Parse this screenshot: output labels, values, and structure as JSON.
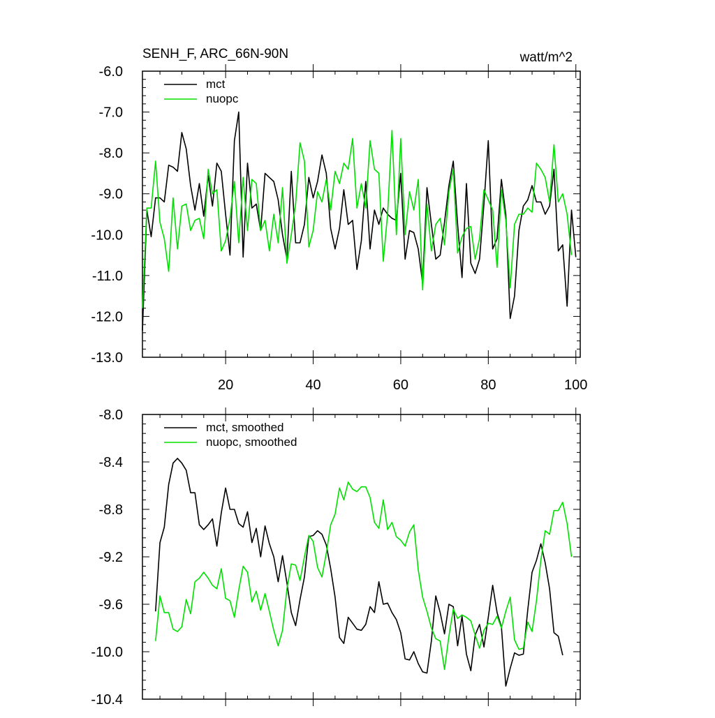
{
  "header": {
    "title": "SENH_F, ARC_66N-90N",
    "units": "watt/m^2"
  },
  "colors": {
    "mct": "#000000",
    "nuopc": "#00e000"
  },
  "chart_data": [
    {
      "type": "line",
      "title": "SENH_F, ARC_66N-90N",
      "units": "watt/m^2",
      "xlabel": "",
      "ylabel": "",
      "xlim": [
        1,
        101
      ],
      "ylim": [
        -13.0,
        -6.0
      ],
      "xticks": [
        20,
        40,
        60,
        80,
        100
      ],
      "yticks": [
        -6.0,
        -7.0,
        -8.0,
        -9.0,
        -10.0,
        -11.0,
        -12.0,
        -13.0
      ],
      "yticklabels": [
        "-6.0",
        "-7.0",
        "-8.0",
        "-9.0",
        "-10.0",
        "-11.0",
        "-12.0",
        "-13.0"
      ],
      "legend": "top-left",
      "x_start": 1,
      "series": [
        {
          "name": "mct",
          "color": "#000000",
          "values": [
            -12.35,
            -9.4,
            -10.05,
            -9.1,
            -9.1,
            -9.2,
            -8.3,
            -8.35,
            -8.45,
            -7.5,
            -7.9,
            -8.8,
            -9.4,
            -8.75,
            -9.55,
            -8.55,
            -9.3,
            -8.25,
            -8.45,
            -9.5,
            -10.5,
            -7.7,
            -7.0,
            -10.55,
            -8.25,
            -9.35,
            -9.25,
            -9.9,
            -8.5,
            -8.6,
            -8.7,
            -9.15,
            -10.0,
            -10.6,
            -8.45,
            -10.2,
            -10.2,
            -9.75,
            -8.6,
            -9.1,
            -8.7,
            -8.05,
            -8.5,
            -9.85,
            -10.35,
            -9.85,
            -8.9,
            -9.75,
            -9.65,
            -10.85,
            -10.15,
            -8.7,
            -10.35,
            -9.4,
            -9.75,
            -9.35,
            -9.5,
            -9.6,
            -9.65,
            -8.5,
            -10.6,
            -9.9,
            -9.95,
            -10.35,
            -11.2,
            -8.85,
            -9.75,
            -10.6,
            -10.5,
            -9.7,
            -8.8,
            -8.2,
            -9.75,
            -11.05,
            -8.75,
            -10.7,
            -10.95,
            -10.6,
            -9.25,
            -7.7,
            -10.35,
            -10.1,
            -8.65,
            -9.5,
            -12.05,
            -11.5,
            -9.9,
            -9.3,
            -9.15,
            -8.8,
            -9.2,
            -9.2,
            -9.5,
            -9.3,
            -8.4,
            -10.4,
            -10.25,
            -11.75,
            -9.4,
            -10.55
          ]
        },
        {
          "name": "nuopc",
          "color": "#00e000",
          "values": [
            -11.8,
            -9.35,
            -9.35,
            -8.2,
            -9.7,
            -10.1,
            -10.9,
            -9.1,
            -10.35,
            -9.3,
            -9.25,
            -9.9,
            -9.65,
            -9.6,
            -10.1,
            -8.4,
            -9.0,
            -8.9,
            -10.4,
            -10.15,
            -9.6,
            -8.7,
            -10.2,
            -8.6,
            -9.9,
            -8.65,
            -8.75,
            -9.9,
            -9.65,
            -10.4,
            -9.5,
            -10.2,
            -8.85,
            -10.7,
            -10.0,
            -9.25,
            -7.75,
            -8.2,
            -10.3,
            -9.9,
            -8.95,
            -9.2,
            -8.65,
            -9.4,
            -8.45,
            -8.75,
            -8.25,
            -8.4,
            -7.65,
            -9.35,
            -8.75,
            -9.35,
            -7.7,
            -8.4,
            -8.5,
            -10.65,
            -9.5,
            -7.45,
            -10.0,
            -7.65,
            -10.0,
            -8.95,
            -9.4,
            -8.65,
            -11.35,
            -9.25,
            -10.4,
            -9.75,
            -9.6,
            -10.25,
            -8.95,
            -8.4,
            -10.45,
            -10.05,
            -9.85,
            -9.8,
            -10.6,
            -10.1,
            -8.9,
            -9.15,
            -9.4,
            -10.8,
            -8.9,
            -9.65,
            -11.3,
            -9.75,
            -9.5,
            -9.5,
            -9.35,
            -9.45,
            -8.25,
            -8.4,
            -8.6,
            -9.2,
            -7.8,
            -9.2,
            -9.0,
            -9.5,
            -10.5
          ]
        }
      ]
    },
    {
      "type": "line",
      "title": "",
      "xlabel": "",
      "ylabel": "",
      "xlim": [
        1,
        101
      ],
      "ylim": [
        -10.4,
        -8.0
      ],
      "xticks": [
        20,
        40,
        60,
        80,
        100
      ],
      "yticks": [
        -8.0,
        -8.4,
        -8.8,
        -9.2,
        -9.6,
        -10.0,
        -10.4
      ],
      "yticklabels": [
        "-8.0",
        "-8.4",
        "-8.8",
        "-9.2",
        "-9.6",
        "-10.0",
        "-10.4"
      ],
      "legend": "top-left",
      "x_start": 4,
      "series": [
        {
          "name": "mct, smoothed",
          "color": "#000000",
          "values": [
            -9.66,
            -9.08,
            -8.95,
            -8.59,
            -8.41,
            -8.37,
            -8.41,
            -8.47,
            -8.66,
            -8.66,
            -8.93,
            -8.97,
            -8.93,
            -8.88,
            -9.11,
            -8.83,
            -8.62,
            -8.8,
            -8.8,
            -8.92,
            -8.95,
            -8.82,
            -9.08,
            -8.96,
            -9.2,
            -8.94,
            -9.09,
            -9.2,
            -9.41,
            -9.19,
            -9.42,
            -9.67,
            -9.78,
            -9.56,
            -9.37,
            -9.03,
            -9.02,
            -8.98,
            -9.01,
            -9.1,
            -9.3,
            -9.54,
            -9.88,
            -9.93,
            -9.71,
            -9.76,
            -9.81,
            -9.82,
            -9.77,
            -9.62,
            -9.67,
            -9.41,
            -9.6,
            -9.59,
            -9.67,
            -9.73,
            -9.84,
            -10.06,
            -10.07,
            -10.0,
            -10.1,
            -10.17,
            -10.18,
            -9.91,
            -9.53,
            -9.67,
            -9.85,
            -9.6,
            -9.62,
            -9.95,
            -9.7,
            -10.02,
            -10.16,
            -9.86,
            -9.77,
            -9.96,
            -9.71,
            -9.44,
            -9.67,
            -9.79,
            -10.29,
            -10.14,
            -10.01,
            -10.03,
            -10.02,
            -9.65,
            -9.33,
            -9.23,
            -9.09,
            -9.25,
            -9.47,
            -9.84,
            -9.87,
            -10.03
          ]
        },
        {
          "name": "nuopc, smoothed",
          "color": "#00e000",
          "values": [
            -9.91,
            -9.53,
            -9.67,
            -9.67,
            -9.81,
            -9.83,
            -9.79,
            -9.56,
            -9.68,
            -9.41,
            -9.38,
            -9.33,
            -9.38,
            -9.44,
            -9.47,
            -9.3,
            -9.55,
            -9.57,
            -9.71,
            -9.48,
            -9.28,
            -9.33,
            -9.58,
            -9.49,
            -9.65,
            -9.51,
            -9.66,
            -9.82,
            -9.95,
            -9.82,
            -9.47,
            -9.26,
            -9.27,
            -9.4,
            -9.2,
            -9.02,
            -9.07,
            -9.29,
            -9.37,
            -9.17,
            -8.93,
            -8.84,
            -8.62,
            -8.72,
            -8.57,
            -8.63,
            -8.65,
            -8.61,
            -8.61,
            -8.7,
            -8.91,
            -8.96,
            -8.72,
            -8.97,
            -8.91,
            -9.03,
            -9.06,
            -9.11,
            -8.99,
            -8.93,
            -9.31,
            -9.54,
            -9.66,
            -9.8,
            -9.89,
            -9.91,
            -10.15,
            -9.87,
            -9.64,
            -9.72,
            -9.69,
            -9.71,
            -9.74,
            -9.86,
            -9.97,
            -9.82,
            -9.76,
            -9.77,
            -9.7,
            -9.8,
            -9.66,
            -9.54,
            -9.9,
            -9.98,
            -9.97,
            -9.75,
            -9.83,
            -9.57,
            -9.23,
            -8.98,
            -9.01,
            -8.81,
            -8.81,
            -8.74,
            -8.92,
            -9.2
          ]
        }
      ]
    }
  ]
}
